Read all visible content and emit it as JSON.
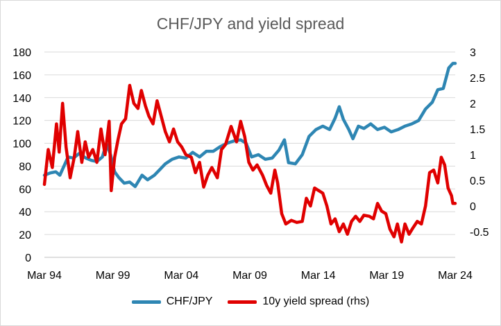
{
  "chart_data": {
    "type": "line",
    "title": "CHF/JPY and yield spread",
    "xlabel": "",
    "ylabel": "",
    "x_tick_labels": [
      "Mar 94",
      "Mar 99",
      "Mar 04",
      "Mar 09",
      "Mar 14",
      "Mar 19",
      "Mar 24"
    ],
    "x_tick_years": [
      1994.17,
      1999.17,
      2004.17,
      2009.17,
      2014.17,
      2019.17,
      2024.17
    ],
    "xlim": [
      1994.17,
      2024.17
    ],
    "y_left": {
      "lim": [
        0,
        180
      ],
      "ticks": [
        0,
        20,
        40,
        60,
        80,
        100,
        120,
        140,
        160,
        180
      ],
      "labels": [
        "0",
        "20",
        "40",
        "60",
        "80",
        "100",
        "120",
        "140",
        "160",
        "180"
      ]
    },
    "y_right": {
      "lim": [
        -1,
        3
      ],
      "ticks": [
        -0.5,
        0,
        0.5,
        1,
        1.5,
        2,
        2.5,
        3
      ],
      "labels": [
        "-0.5",
        "0",
        "0.5",
        "1",
        "1.5",
        "2",
        "2.5",
        "3"
      ]
    },
    "grid": "horizontal",
    "legend_position": "bottom",
    "series": [
      {
        "name": "CHF/JPY",
        "axis": "left",
        "color": "#2e86b3",
        "points": [
          [
            1994.17,
            72
          ],
          [
            1994.6,
            74
          ],
          [
            1995.0,
            75
          ],
          [
            1995.3,
            72
          ],
          [
            1995.6,
            80
          ],
          [
            1995.9,
            88
          ],
          [
            1996.3,
            87
          ],
          [
            1996.7,
            91
          ],
          [
            1997.2,
            87
          ],
          [
            1997.6,
            85
          ],
          [
            1998.0,
            84
          ],
          [
            1998.4,
            88
          ],
          [
            1998.7,
            100
          ],
          [
            1999.0,
            90
          ],
          [
            1999.3,
            75
          ],
          [
            1999.6,
            70
          ],
          [
            2000.0,
            65
          ],
          [
            2000.4,
            66
          ],
          [
            2000.8,
            62
          ],
          [
            2001.3,
            72
          ],
          [
            2001.7,
            68
          ],
          [
            2002.2,
            72
          ],
          [
            2002.6,
            77
          ],
          [
            2003.0,
            82
          ],
          [
            2003.5,
            86
          ],
          [
            2004.0,
            88
          ],
          [
            2004.5,
            87
          ],
          [
            2005.0,
            92
          ],
          [
            2005.5,
            88
          ],
          [
            2006.0,
            93
          ],
          [
            2006.5,
            93
          ],
          [
            2007.0,
            97
          ],
          [
            2007.5,
            100
          ],
          [
            2008.0,
            102
          ],
          [
            2008.5,
            103
          ],
          [
            2008.9,
            100
          ],
          [
            2009.3,
            88
          ],
          [
            2009.8,
            90
          ],
          [
            2010.3,
            86
          ],
          [
            2010.8,
            87
          ],
          [
            2011.3,
            94
          ],
          [
            2011.7,
            103
          ],
          [
            2012.0,
            83
          ],
          [
            2012.5,
            82
          ],
          [
            2013.0,
            90
          ],
          [
            2013.5,
            106
          ],
          [
            2014.0,
            112
          ],
          [
            2014.5,
            115
          ],
          [
            2015.0,
            112
          ],
          [
            2015.4,
            122
          ],
          [
            2015.7,
            132
          ],
          [
            2016.0,
            121
          ],
          [
            2016.4,
            112
          ],
          [
            2016.7,
            104
          ],
          [
            2017.1,
            115
          ],
          [
            2017.5,
            113
          ],
          [
            2018.0,
            117
          ],
          [
            2018.5,
            112
          ],
          [
            2019.0,
            114
          ],
          [
            2019.5,
            110
          ],
          [
            2020.0,
            112
          ],
          [
            2020.5,
            115
          ],
          [
            2021.0,
            117
          ],
          [
            2021.5,
            120
          ],
          [
            2022.0,
            130
          ],
          [
            2022.5,
            136
          ],
          [
            2022.9,
            147
          ],
          [
            2023.3,
            148
          ],
          [
            2023.7,
            166
          ],
          [
            2024.0,
            170
          ],
          [
            2024.17,
            170
          ]
        ]
      },
      {
        "name": "10y yield spread (rhs)",
        "axis": "right",
        "color": "#e00000",
        "points": [
          [
            1994.17,
            0.42
          ],
          [
            1994.45,
            1.1
          ],
          [
            1994.75,
            0.75
          ],
          [
            1995.05,
            1.6
          ],
          [
            1995.25,
            1.05
          ],
          [
            1995.5,
            2.0
          ],
          [
            1995.75,
            1.15
          ],
          [
            1996.05,
            0.55
          ],
          [
            1996.35,
            0.95
          ],
          [
            1996.6,
            1.45
          ],
          [
            1996.9,
            0.85
          ],
          [
            1997.15,
            1.25
          ],
          [
            1997.4,
            0.95
          ],
          [
            1997.7,
            1.1
          ],
          [
            1998.0,
            0.85
          ],
          [
            1998.3,
            1.5
          ],
          [
            1998.6,
            1.0
          ],
          [
            1998.9,
            1.65
          ],
          [
            1999.05,
            0.3
          ],
          [
            1999.3,
            0.95
          ],
          [
            1999.55,
            1.3
          ],
          [
            1999.8,
            1.6
          ],
          [
            2000.1,
            1.7
          ],
          [
            2000.4,
            2.35
          ],
          [
            2000.7,
            2.0
          ],
          [
            2001.0,
            1.9
          ],
          [
            2001.25,
            2.25
          ],
          [
            2001.55,
            1.95
          ],
          [
            2001.8,
            1.75
          ],
          [
            2002.1,
            1.6
          ],
          [
            2002.4,
            2.05
          ],
          [
            2002.7,
            1.75
          ],
          [
            2003.0,
            1.45
          ],
          [
            2003.3,
            1.25
          ],
          [
            2003.6,
            1.5
          ],
          [
            2003.9,
            1.25
          ],
          [
            2004.2,
            1.15
          ],
          [
            2004.5,
            1.0
          ],
          [
            2004.9,
            0.95
          ],
          [
            2005.2,
            0.65
          ],
          [
            2005.5,
            0.85
          ],
          [
            2005.8,
            0.37
          ],
          [
            2006.1,
            0.6
          ],
          [
            2006.4,
            0.75
          ],
          [
            2006.8,
            0.55
          ],
          [
            2007.1,
            1.1
          ],
          [
            2007.4,
            1.2
          ],
          [
            2007.8,
            1.55
          ],
          [
            2008.2,
            1.25
          ],
          [
            2008.5,
            1.65
          ],
          [
            2008.8,
            1.35
          ],
          [
            2009.1,
            0.85
          ],
          [
            2009.4,
            0.7
          ],
          [
            2009.7,
            0.8
          ],
          [
            2010.1,
            0.6
          ],
          [
            2010.4,
            0.4
          ],
          [
            2010.7,
            0.25
          ],
          [
            2011.0,
            0.7
          ],
          [
            2011.2,
            0.45
          ],
          [
            2011.5,
            -0.15
          ],
          [
            2011.8,
            -0.35
          ],
          [
            2012.2,
            -0.28
          ],
          [
            2012.6,
            -0.32
          ],
          [
            2013.0,
            -0.3
          ],
          [
            2013.3,
            0.15
          ],
          [
            2013.6,
            0.0
          ],
          [
            2013.9,
            0.35
          ],
          [
            2014.2,
            0.3
          ],
          [
            2014.5,
            0.25
          ],
          [
            2014.8,
            0.0
          ],
          [
            2015.1,
            -0.35
          ],
          [
            2015.4,
            -0.25
          ],
          [
            2015.7,
            -0.5
          ],
          [
            2016.0,
            -0.35
          ],
          [
            2016.3,
            -0.55
          ],
          [
            2016.6,
            -0.3
          ],
          [
            2016.9,
            -0.2
          ],
          [
            2017.2,
            -0.3
          ],
          [
            2017.5,
            -0.18
          ],
          [
            2017.9,
            -0.2
          ],
          [
            2018.2,
            -0.25
          ],
          [
            2018.5,
            0.05
          ],
          [
            2018.8,
            -0.1
          ],
          [
            2019.1,
            -0.15
          ],
          [
            2019.4,
            -0.45
          ],
          [
            2019.7,
            -0.6
          ],
          [
            2019.95,
            -0.35
          ],
          [
            2020.25,
            -0.7
          ],
          [
            2020.5,
            -0.35
          ],
          [
            2020.8,
            -0.55
          ],
          [
            2021.1,
            -0.42
          ],
          [
            2021.4,
            -0.3
          ],
          [
            2021.7,
            -0.35
          ],
          [
            2022.0,
            0.0
          ],
          [
            2022.3,
            0.65
          ],
          [
            2022.6,
            0.7
          ],
          [
            2022.9,
            0.45
          ],
          [
            2023.15,
            0.95
          ],
          [
            2023.4,
            0.8
          ],
          [
            2023.65,
            0.35
          ],
          [
            2023.9,
            0.2
          ],
          [
            2024.0,
            0.05
          ],
          [
            2024.17,
            0.05
          ]
        ]
      }
    ]
  }
}
